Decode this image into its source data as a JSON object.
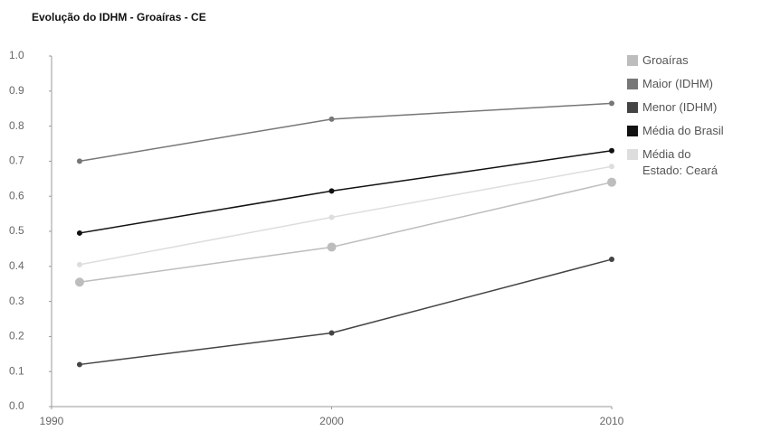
{
  "chart_data": {
    "type": "line",
    "title": "Evolução do IDHM - Groaíras - CE",
    "x": [
      1991,
      2000,
      2010
    ],
    "xlim": [
      1990,
      2010
    ],
    "xticks": [
      1990,
      2000,
      2010
    ],
    "ylim": [
      0,
      1
    ],
    "yticks": [
      {
        "value": 0,
        "label": "0.0"
      },
      0.1,
      0.2,
      0.3,
      0.4,
      0.5,
      0.6,
      0.7,
      0.8,
      0.9,
      {
        "value": 1,
        "label": "1.0"
      }
    ],
    "grid": false,
    "legend": "right",
    "series": [
      {
        "name": "Groaíras",
        "color": "#bdbdbd",
        "values": [
          0.355,
          0.455,
          0.64
        ]
      },
      {
        "name": "Maior (IDHM)",
        "color": "#777777",
        "values": [
          0.7,
          0.82,
          0.865
        ]
      },
      {
        "name": "Menor (IDHM)",
        "color": "#444444",
        "values": [
          0.12,
          0.21,
          0.42
        ]
      },
      {
        "name": "Média do Brasil",
        "color": "#111111",
        "values": [
          0.495,
          0.615,
          0.73
        ]
      },
      {
        "name": "Média do Estado: Ceará",
        "color": "#dddddd",
        "values": [
          0.405,
          0.54,
          0.685
        ]
      }
    ]
  }
}
